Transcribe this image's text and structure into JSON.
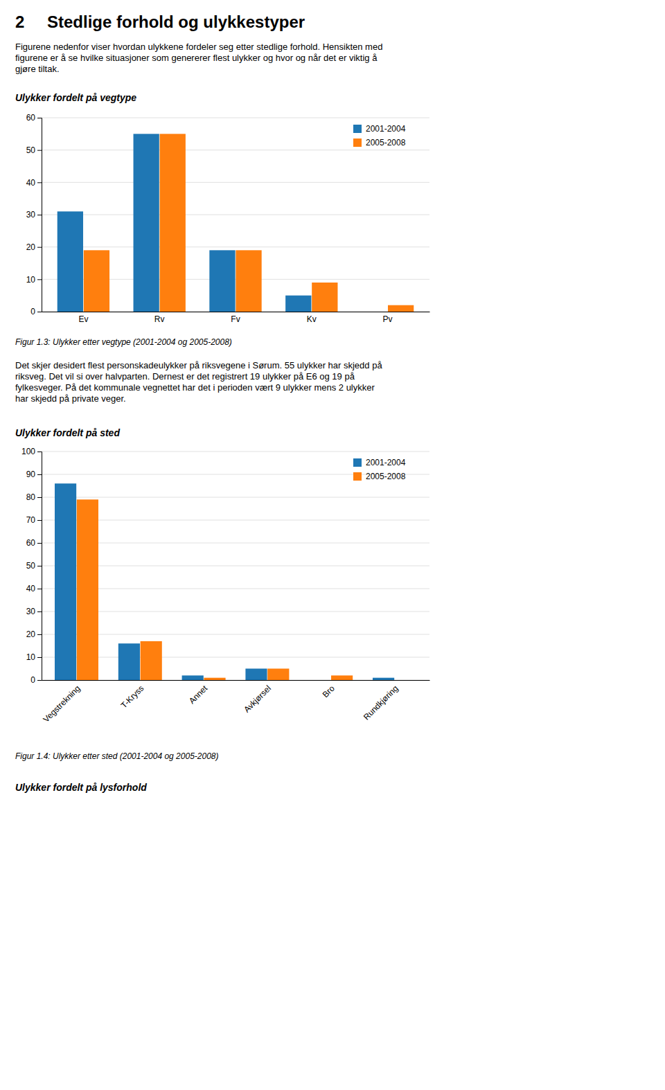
{
  "heading_number": "2",
  "heading_text": "Stedlige forhold og ulykkestyper",
  "intro": [
    "Figurene nedenfor viser hvordan ulykkene fordeler seg etter stedlige forhold. Hensikten med",
    "figurene er å se hvilke situasjoner som genererer flest ulykker og hvor og når det er viktig å",
    "gjøre tiltak."
  ],
  "body": [
    "Det skjer desidert flest personskadeulykker på riksvegene i Sørum. 55 ulykker har skjedd på",
    "riksveg. Det vil si over halvparten.  Dernest er det registrert 19 ulykker på E6 og 19 på",
    "fylkesveger. På det kommunale vegnettet har det i perioden vært 9 ulykker mens 2 ulykker",
    "har skjedd på private veger."
  ],
  "footer": "Ulykker fordelt på lysforhold",
  "chart_data": [
    {
      "type": "bar",
      "title": "Ulykker fordelt på vegtype",
      "caption": "Figur 1.3: Ulykker etter vegtype (2001-2004 og 2005-2008)",
      "categories": [
        "Ev",
        "Rv",
        "Fv",
        "Kv",
        "Pv"
      ],
      "series": [
        {
          "name": "2001-2004",
          "values": [
            31,
            55,
            19,
            5,
            0
          ]
        },
        {
          "name": "2005-2008",
          "values": [
            19,
            55,
            19,
            9,
            2
          ]
        }
      ],
      "ylim": [
        0,
        60
      ],
      "yticks": [
        0,
        10,
        20,
        30,
        40,
        50,
        60
      ],
      "grid": true,
      "legend": "upper right"
    },
    {
      "type": "bar",
      "title": "Ulykker fordelt på sted",
      "caption": "Figur 1.4: Ulykker etter sted (2001-2004 og 2005-2008)",
      "categories": [
        "Vegstrekning",
        "T-Kryss",
        "Annet",
        "Avkjørsel",
        "Bro",
        "Rundkjøring"
      ],
      "series": [
        {
          "name": "2001-2004",
          "values": [
            86,
            16,
            2,
            5,
            0,
            1
          ]
        },
        {
          "name": "2005-2008",
          "values": [
            79,
            17,
            1,
            5,
            2,
            0
          ]
        }
      ],
      "ylim": [
        0,
        100
      ],
      "yticks": [
        0,
        10,
        20,
        30,
        40,
        50,
        60,
        70,
        80,
        90,
        100
      ],
      "grid": true,
      "legend": "upper right"
    }
  ]
}
